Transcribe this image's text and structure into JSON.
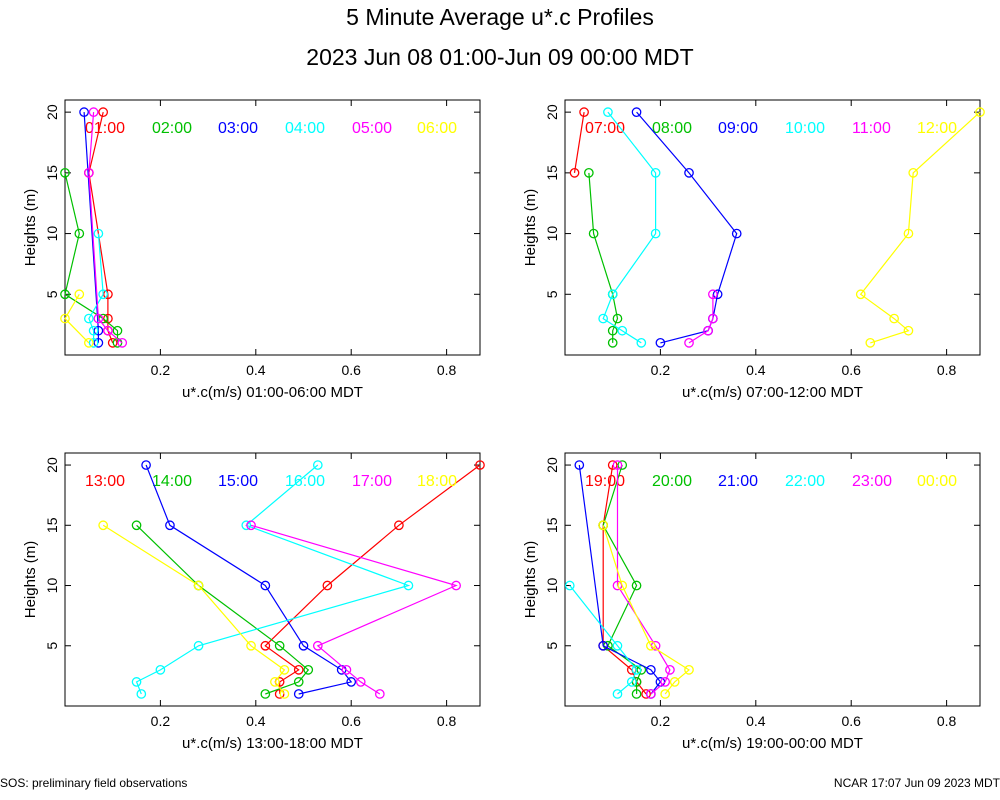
{
  "title": "5 Minute Average u*.c Profiles",
  "subtitle": "2023 Jun 08 01:00-Jun 09 00:00 MDT",
  "footer_left": "SOS: preliminary field observations",
  "footer_right": "NCAR 17:07 Jun 09 2023 MDT",
  "colors": {
    "red": "#ff0000",
    "green": "#00c000",
    "blue": "#0000ff",
    "cyan": "#00ffff",
    "magenta": "#ff00ff",
    "yellow": "#ffff00"
  },
  "chart_data": [
    {
      "type": "line",
      "ylabel": "Heights (m)",
      "xlabel": "u*.c(m/s) 01:00-06:00 MDT",
      "xlim": [
        0,
        0.87
      ],
      "ylim": [
        0,
        21
      ],
      "xticks": [
        "0.2",
        "0.4",
        "0.6",
        "0.8"
      ],
      "yticks": [
        "5",
        "10",
        "15",
        "20"
      ],
      "series": [
        {
          "name": "01:00",
          "color": "red",
          "points": [
            [
              0.08,
              20
            ],
            [
              0.05,
              15
            ],
            [
              0.09,
              5
            ],
            [
              0.09,
              3
            ],
            [
              0.09,
              2
            ],
            [
              0.1,
              1
            ]
          ]
        },
        {
          "name": "02:00",
          "color": "green",
          "points": [
            [
              0.0,
              15
            ],
            [
              0.03,
              10
            ],
            [
              0.0,
              5
            ],
            [
              0.08,
              3
            ],
            [
              0.11,
              2
            ],
            [
              0.11,
              1
            ]
          ]
        },
        {
          "name": "03:00",
          "color": "blue",
          "points": [
            [
              0.04,
              20
            ],
            [
              0.07,
              2
            ],
            [
              0.07,
              1
            ]
          ]
        },
        {
          "name": "04:00",
          "color": "cyan",
          "points": [
            [
              0.07,
              10
            ],
            [
              0.08,
              5
            ],
            [
              0.05,
              3
            ],
            [
              0.06,
              2
            ],
            [
              0.06,
              1
            ]
          ]
        },
        {
          "name": "05:00",
          "color": "magenta",
          "points": [
            [
              0.06,
              20
            ],
            [
              0.05,
              15
            ],
            [
              0.07,
              3
            ],
            [
              0.09,
              2
            ],
            [
              0.12,
              1
            ]
          ]
        },
        {
          "name": "06:00",
          "color": "yellow",
          "points": [
            [
              0.03,
              5
            ],
            [
              0.0,
              3
            ],
            [
              0.05,
              1
            ]
          ]
        }
      ]
    },
    {
      "type": "line",
      "ylabel": "Heights (m)",
      "xlabel": "u*.c(m/s) 07:00-12:00 MDT",
      "xlim": [
        0,
        0.87
      ],
      "ylim": [
        0,
        21
      ],
      "xticks": [
        "0.2",
        "0.4",
        "0.6",
        "0.8"
      ],
      "yticks": [
        "5",
        "10",
        "15",
        "20"
      ],
      "series": [
        {
          "name": "07:00",
          "color": "red",
          "points": [
            [
              0.04,
              20
            ],
            [
              0.02,
              15
            ]
          ]
        },
        {
          "name": "08:00",
          "color": "green",
          "points": [
            [
              0.05,
              15
            ],
            [
              0.06,
              10
            ],
            [
              0.1,
              5
            ],
            [
              0.11,
              3
            ],
            [
              0.1,
              2
            ],
            [
              0.1,
              1
            ]
          ]
        },
        {
          "name": "09:00",
          "color": "blue",
          "points": [
            [
              0.15,
              20
            ],
            [
              0.26,
              15
            ],
            [
              0.36,
              10
            ],
            [
              0.32,
              5
            ],
            [
              0.31,
              3
            ],
            [
              0.3,
              2
            ],
            [
              0.2,
              1
            ]
          ]
        },
        {
          "name": "10:00",
          "color": "cyan",
          "points": [
            [
              0.09,
              20
            ],
            [
              0.19,
              15
            ],
            [
              0.19,
              10
            ],
            [
              0.1,
              5
            ],
            [
              0.08,
              3
            ],
            [
              0.12,
              2
            ],
            [
              0.16,
              1
            ]
          ]
        },
        {
          "name": "11:00",
          "color": "magenta",
          "points": [
            [
              0.31,
              5
            ],
            [
              0.31,
              3
            ],
            [
              0.3,
              2
            ],
            [
              0.26,
              1
            ]
          ]
        },
        {
          "name": "12:00",
          "color": "yellow",
          "points": [
            [
              0.87,
              20
            ],
            [
              0.73,
              15
            ],
            [
              0.72,
              10
            ],
            [
              0.62,
              5
            ],
            [
              0.69,
              3
            ],
            [
              0.72,
              2
            ],
            [
              0.64,
              1
            ]
          ]
        }
      ]
    },
    {
      "type": "line",
      "ylabel": "Heights (m)",
      "xlabel": "u*.c(m/s) 13:00-18:00 MDT",
      "xlim": [
        0,
        0.87
      ],
      "ylim": [
        0,
        21
      ],
      "xticks": [
        "0.2",
        "0.4",
        "0.6",
        "0.8"
      ],
      "yticks": [
        "5",
        "10",
        "15",
        "20"
      ],
      "series": [
        {
          "name": "13:00",
          "color": "red",
          "points": [
            [
              0.87,
              20
            ],
            [
              0.7,
              15
            ],
            [
              0.55,
              10
            ],
            [
              0.42,
              5
            ],
            [
              0.49,
              3
            ],
            [
              0.45,
              2
            ],
            [
              0.45,
              1
            ]
          ]
        },
        {
          "name": "14:00",
          "color": "green",
          "points": [
            [
              0.15,
              15
            ],
            [
              0.28,
              10
            ],
            [
              0.45,
              5
            ],
            [
              0.51,
              3
            ],
            [
              0.49,
              2
            ],
            [
              0.42,
              1
            ]
          ]
        },
        {
          "name": "15:00",
          "color": "blue",
          "points": [
            [
              0.17,
              20
            ],
            [
              0.22,
              15
            ],
            [
              0.42,
              10
            ],
            [
              0.5,
              5
            ],
            [
              0.58,
              3
            ],
            [
              0.6,
              2
            ],
            [
              0.49,
              1
            ]
          ]
        },
        {
          "name": "16:00",
          "color": "cyan",
          "points": [
            [
              0.53,
              20
            ],
            [
              0.38,
              15
            ],
            [
              0.72,
              10
            ],
            [
              0.28,
              5
            ],
            [
              0.2,
              3
            ],
            [
              0.15,
              2
            ],
            [
              0.16,
              1
            ]
          ]
        },
        {
          "name": "17:00",
          "color": "magenta",
          "points": [
            [
              0.39,
              15
            ],
            [
              0.82,
              10
            ],
            [
              0.53,
              5
            ],
            [
              0.59,
              3
            ],
            [
              0.62,
              2
            ],
            [
              0.66,
              1
            ]
          ]
        },
        {
          "name": "18:00",
          "color": "yellow",
          "points": [
            [
              0.08,
              15
            ],
            [
              0.28,
              10
            ],
            [
              0.39,
              5
            ],
            [
              0.46,
              3
            ],
            [
              0.44,
              2
            ],
            [
              0.46,
              1
            ]
          ]
        }
      ]
    },
    {
      "type": "line",
      "ylabel": "Heights (m)",
      "xlabel": "u*.c(m/s) 19:00-00:00 MDT",
      "xlim": [
        0,
        0.87
      ],
      "ylim": [
        0,
        21
      ],
      "xticks": [
        "0.2",
        "0.4",
        "0.6",
        "0.8"
      ],
      "yticks": [
        "5",
        "10",
        "15",
        "20"
      ],
      "series": [
        {
          "name": "19:00",
          "color": "red",
          "points": [
            [
              0.1,
              20
            ],
            [
              0.08,
              15
            ],
            [
              0.08,
              5
            ],
            [
              0.14,
              3
            ],
            [
              0.15,
              2
            ],
            [
              0.17,
              1
            ]
          ]
        },
        {
          "name": "20:00",
          "color": "green",
          "points": [
            [
              0.12,
              20
            ],
            [
              0.08,
              15
            ],
            [
              0.15,
              10
            ],
            [
              0.09,
              5
            ],
            [
              0.16,
              3
            ],
            [
              0.15,
              2
            ],
            [
              0.15,
              1
            ]
          ]
        },
        {
          "name": "21:00",
          "color": "blue",
          "points": [
            [
              0.03,
              20
            ],
            [
              0.08,
              5
            ],
            [
              0.18,
              3
            ],
            [
              0.2,
              2
            ],
            [
              0.18,
              1
            ]
          ]
        },
        {
          "name": "22:00",
          "color": "cyan",
          "points": [
            [
              0.01,
              10
            ],
            [
              0.11,
              5
            ],
            [
              0.15,
              3
            ],
            [
              0.14,
              2
            ],
            [
              0.11,
              1
            ]
          ]
        },
        {
          "name": "23:00",
          "color": "magenta",
          "points": [
            [
              0.11,
              20
            ],
            [
              0.11,
              10
            ],
            [
              0.19,
              5
            ],
            [
              0.22,
              3
            ],
            [
              0.21,
              2
            ],
            [
              0.18,
              1
            ]
          ]
        },
        {
          "name": "00:00",
          "color": "yellow",
          "points": [
            [
              0.08,
              15
            ],
            [
              0.12,
              10
            ],
            [
              0.18,
              5
            ],
            [
              0.26,
              3
            ],
            [
              0.23,
              2
            ],
            [
              0.21,
              1
            ]
          ]
        }
      ]
    }
  ]
}
